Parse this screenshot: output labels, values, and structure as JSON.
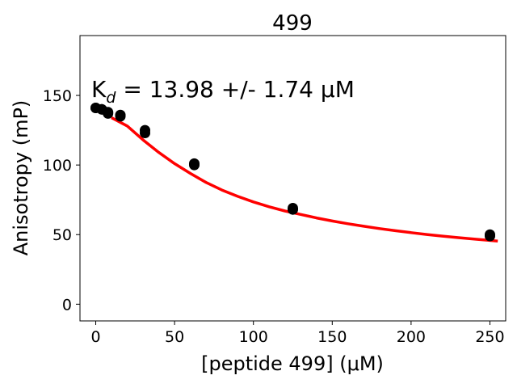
{
  "chart_data": {
    "type": "scatter",
    "title": "499",
    "xlabel": "[peptide 499] (μM)",
    "ylabel": "Anisotropy (mP)",
    "xlim": [
      -10,
      260
    ],
    "ylim": [
      -12,
      193
    ],
    "xticks": [
      0,
      50,
      100,
      150,
      200,
      250
    ],
    "yticks": [
      0,
      50,
      100,
      150
    ],
    "grid": false,
    "annotation": {
      "text_main": "K",
      "text_sub": "d",
      "text_rest": " = 13.98 +/- 1.74 ",
      "text_unit": "μM"
    },
    "series": [
      {
        "kind": "points",
        "color": "#000000",
        "x": [
          0,
          0,
          3.9,
          3.9,
          7.8,
          7.8,
          15.6,
          15.6,
          31.25,
          31.25,
          62.5,
          62.5,
          125,
          125,
          250,
          250
        ],
        "y": [
          141,
          141,
          140,
          140,
          138,
          137,
          136,
          135,
          125,
          123,
          101,
          100,
          69,
          68,
          50,
          49
        ]
      },
      {
        "kind": "fit-curve",
        "color": "#ff0000",
        "x": [
          10,
          20,
          30,
          40,
          50,
          60,
          70,
          80,
          90,
          100,
          110,
          120,
          130,
          140,
          150,
          160,
          170,
          180,
          190,
          200,
          210,
          220,
          230,
          240,
          255
        ],
        "y": [
          134,
          128,
          118,
          109,
          101,
          94,
          87.5,
          82,
          77.5,
          73.5,
          70,
          67,
          64.5,
          62,
          59.8,
          57.8,
          56,
          54.3,
          52.8,
          51.4,
          50.1,
          48.9,
          47.8,
          46.8,
          45.3
        ]
      }
    ]
  }
}
